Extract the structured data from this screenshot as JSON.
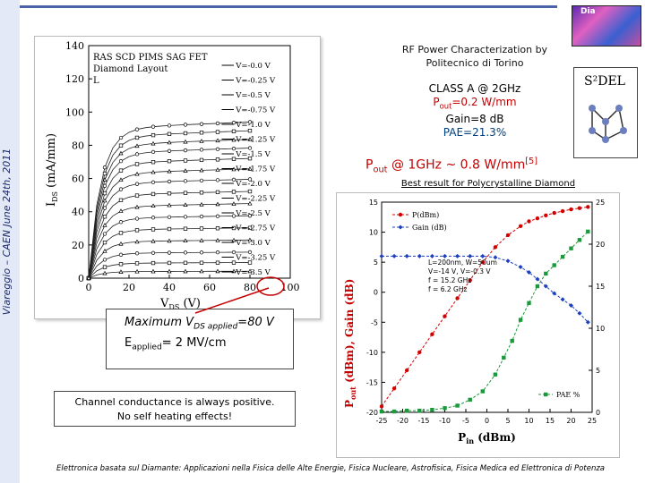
{
  "side_text": "Viareggio – CAEN June 24th, 2011",
  "logo": {
    "text": "Dia"
  },
  "rf_title_1": "RF Power Characterization by",
  "rf_title_2": "Politecnico di Torino",
  "classA": {
    "line1": "CLASS A @ 2GHz",
    "pout": "=0.2 W/mm",
    "gain": "Gain=8 dB",
    "pae": "PAE=21.3%"
  },
  "s2del": "S²DEL",
  "pout_headline": "@ 1GHz ~ 0.8 W/mm",
  "pout_ref": "[5]",
  "best_result": "Best result for Polycrystalline Diamond",
  "vds_box": {
    "line1_pre": "Maximum V",
    "line1_sub": "DS applied",
    "line1_post": "=80 V",
    "line2_pre": "E",
    "line2_sub": "applied",
    "line2_post": "= 2 MV/cm"
  },
  "channel_box": {
    "line1": "Channel conductance is always positive.",
    "line2": "No self heating effects!"
  },
  "footer": "Elettronica basata sul Diamante: Applicazioni nella Fisica delle Alte Energie, Fisica Nucleare, Astrofisica, Fisica Medica ed Elettronica di Potenza",
  "chart_data": [
    {
      "type": "line",
      "title_lines": [
        "RAS SCD PIMS SAG FET",
        "Diamond Layout"
      ],
      "dims": "L",
      "xlabel": "V",
      "xlabel_sub": "DS",
      "xlabel_unit": "(V)",
      "ylabel": "I",
      "ylabel_sub": "DS",
      "ylabel_unit": "(mA/mm)",
      "xlim": [
        0,
        100
      ],
      "ylim": [
        0,
        140
      ],
      "xticks": [
        0,
        20,
        40,
        60,
        80,
        100
      ],
      "yticks": [
        0,
        20,
        40,
        60,
        80,
        100,
        120,
        140
      ],
      "legend_placement": "right",
      "series": [
        {
          "name": "V=-0.0 V",
          "sat": 90
        },
        {
          "name": "V=-0.25 V",
          "sat": 85
        },
        {
          "name": "V=-0.5 V",
          "sat": 80
        },
        {
          "name": "V=-0.75 V",
          "sat": 75
        },
        {
          "name": "V=-1.0 V",
          "sat": 69
        },
        {
          "name": "V=-1.25 V",
          "sat": 63
        },
        {
          "name": "V=-1.5 V",
          "sat": 57
        },
        {
          "name": "V=-1.75 V",
          "sat": 50
        },
        {
          "name": "V=-2.0 V",
          "sat": 43
        },
        {
          "name": "V=-2.25 V",
          "sat": 36
        },
        {
          "name": "V=-2.5 V",
          "sat": 29
        },
        {
          "name": "V=-2.75 V",
          "sat": 22
        },
        {
          "name": "V=-3.0 V",
          "sat": 15
        },
        {
          "name": "V=-3.25 V",
          "sat": 9
        },
        {
          "name": "V=-3.5 V",
          "sat": 4
        }
      ],
      "highlight_x": 80
    },
    {
      "type": "line",
      "xlabel": "P",
      "xlabel_sub": "in",
      "xlabel_unit": "(dBm)",
      "ylabel_left": "P",
      "ylabel_left_sub": "out",
      "ylabel_left_rest": "(dBm), Gain (dB)",
      "ylabel_right": "% PAE",
      "xlim": [
        -25,
        25
      ],
      "ylim_left": [
        -20,
        15
      ],
      "ylim_right": [
        0,
        25
      ],
      "xticks": [
        -25,
        -20,
        -15,
        -10,
        -5,
        0,
        5,
        10,
        15,
        20,
        25
      ],
      "yticks_left": [
        -20,
        -15,
        -10,
        -5,
        0,
        5,
        10,
        15
      ],
      "yticks_right": [
        0,
        5,
        10,
        15,
        20,
        25
      ],
      "annotations": [
        "L=200nm, W=50um",
        "V=-14 V, V=-0.3 V",
        "f = 15.2 GHz",
        "f = 6.2 GHz"
      ],
      "series": [
        {
          "name": "P(dBm)",
          "color": "#d40000",
          "axis": "left",
          "x": [
            -25,
            -22,
            -19,
            -16,
            -13,
            -10,
            -7,
            -4,
            -1,
            2,
            5,
            8,
            10,
            12,
            14,
            16,
            18,
            20,
            22,
            24
          ],
          "y": [
            -19,
            -16,
            -13,
            -10,
            -7,
            -4,
            -1,
            2,
            5,
            7.5,
            9.5,
            11,
            11.8,
            12.3,
            12.8,
            13.2,
            13.5,
            13.8,
            14,
            14.2
          ]
        },
        {
          "name": "Gain (dB)",
          "color": "#1a3fbf",
          "axis": "left",
          "x": [
            -25,
            -22,
            -19,
            -16,
            -13,
            -10,
            -7,
            -4,
            -1,
            2,
            5,
            8,
            10,
            12,
            14,
            16,
            18,
            20,
            22,
            24
          ],
          "y": [
            6,
            6,
            6,
            6,
            6,
            6,
            6,
            6,
            6,
            5.8,
            5.2,
            4.2,
            3.3,
            2.2,
            1,
            -0.2,
            -1.2,
            -2.2,
            -3.5,
            -5
          ]
        },
        {
          "name": "PAE %",
          "color": "#1a9a3a",
          "axis": "right",
          "x": [
            -25,
            -22,
            -19,
            -16,
            -13,
            -10,
            -7,
            -4,
            -1,
            2,
            4,
            6,
            8,
            10,
            12,
            14,
            16,
            18,
            20,
            22,
            24
          ],
          "y": [
            0.1,
            0.1,
            0.2,
            0.2,
            0.3,
            0.5,
            0.8,
            1.5,
            2.5,
            4.5,
            6.5,
            8.5,
            11,
            13,
            15,
            16.5,
            17.5,
            18.5,
            19.5,
            20.5,
            21.5
          ]
        }
      ]
    }
  ]
}
